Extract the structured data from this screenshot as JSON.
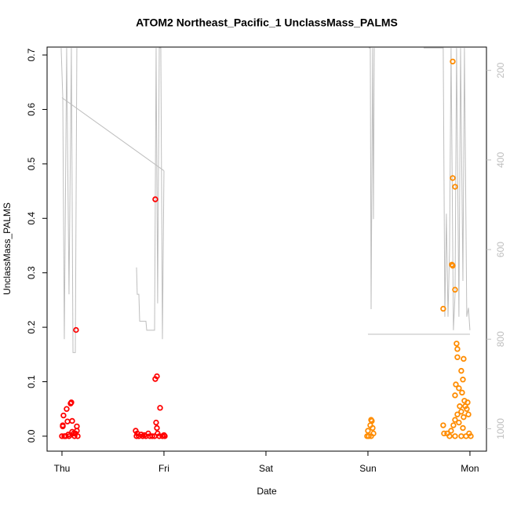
{
  "chart_data": {
    "type": "scatter",
    "title": "ATOM2 Northeast_Pacific_1 UnclassMass_PALMS",
    "x_label": "Date",
    "y_label": "UnclassMass_PALMS",
    "xlim": [
      -0.146,
      4.162
    ],
    "xticks": [
      {
        "value": 0,
        "label": "Thu"
      },
      {
        "value": 1,
        "label": "Fri"
      },
      {
        "value": 2,
        "label": "Sat"
      },
      {
        "value": 3,
        "label": "Sun"
      },
      {
        "value": 4,
        "label": "Mon"
      }
    ],
    "ylim": [
      -0.0275,
      0.7145
    ],
    "yticks": [
      {
        "value": 0,
        "label": "0.0"
      },
      0.1,
      0.2,
      0.3,
      0.4,
      0.5,
      0.6,
      0.7
    ],
    "y2lim": [
      1050,
      148
    ],
    "y2ticks": [
      200,
      400,
      600,
      800,
      1000
    ],
    "y2_color": "#bebebe",
    "series": [
      {
        "color": "#ff0000",
        "x": [
          0,
          0.008,
          0.015,
          0.008,
          0.023,
          0.038,
          0.046,
          0.054,
          0.069,
          0.085,
          0.092,
          0.1,
          0.115,
          0.131,
          0.138,
          0.146,
          0.146,
          0.154,
          0.031,
          0.062,
          0.123,
          0.1,
          0.723,
          0.731,
          0.738,
          0.754,
          0.777,
          0.792,
          0.808,
          0.823,
          0.846,
          0.862,
          0.885,
          0.908,
          0.915,
          0.915,
          0.931,
          0.962,
          0.923,
          0.931,
          0.938,
          0.954,
          0.985,
          1.0,
          1.008
        ],
        "values": [
          0,
          0.02,
          0.038,
          0.018,
          0,
          0,
          0.05,
          0.027,
          0,
          0.06,
          0.062,
          0.028,
          0.005,
          0.005,
          0.195,
          0.018,
          0.01,
          0,
          0,
          0.003,
          0,
          0.008,
          0.01,
          0,
          0.005,
          0,
          0.003,
          0,
          0.002,
          0,
          0.005,
          0,
          0,
          0,
          0.435,
          0.105,
          0.11,
          0.052,
          0.025,
          0.015,
          0.005,
          0,
          0,
          0.002,
          0
        ]
      },
      {
        "color": "#ff8c00",
        "x": [
          2.992,
          3.0,
          3.008,
          3.023,
          3.031,
          3.038,
          3.046,
          3.054,
          3.031,
          3.738,
          3.738,
          3.831,
          3.831,
          3.854,
          3.823,
          3.831,
          3.854,
          3.869,
          3.877,
          3.877,
          3.915,
          3.938,
          3.931,
          3.862,
          3.892,
          3.854,
          3.923,
          3.946,
          3.977,
          3.954,
          3.9,
          3.969,
          3.985,
          3.877,
          3.915,
          3.854,
          3.938,
          3.892,
          3.838,
          3.815,
          3.931,
          3.777,
          3.992,
          3.746,
          4.008,
          3.854,
          3.8,
          3.915,
          3.962
        ],
        "values": [
          0,
          0.01,
          0,
          0.02,
          0.03,
          0.028,
          0.015,
          0.005,
          0,
          0.234,
          0.02,
          0.688,
          0.474,
          0.458,
          0.315,
          0.313,
          0.269,
          0.17,
          0.16,
          0.145,
          0.12,
          0.142,
          0.104,
          0.095,
          0.088,
          0.075,
          0.08,
          0.065,
          0.062,
          0.055,
          0.055,
          0.05,
          0.04,
          0.04,
          0.045,
          0.03,
          0.035,
          0.025,
          0.02,
          0.01,
          0.015,
          0.005,
          0.005,
          0.005,
          0,
          0,
          0,
          0,
          0
        ]
      },
      {
        "color": "#bebebe",
        "axis": "y2",
        "x": [
          -0.008,
          0.008,
          0.023,
          0.046,
          0.069,
          0.092,
          0.108,
          0.131,
          0.146,
          null,
          0,
          1.0,
          null,
          0.731,
          0.738,
          0.754,
          0.762,
          0.823,
          0.831,
          0.908,
          0.923,
          0.938,
          0.954,
          0.969,
          0.985,
          1.0,
          null,
          3.008,
          3.023,
          3.031,
          3.046,
          3.054,
          3.062,
          null,
          3.0,
          4.0,
          null,
          3.546,
          3.738,
          3.754,
          3.769,
          3.785,
          3.8,
          3.815,
          3.838,
          3.854,
          3.869,
          3.892,
          3.908,
          3.931,
          3.946,
          3.969,
          3.985,
          4.0
        ],
        "values": [
          150,
          261,
          800,
          150,
          700,
          150,
          830,
          830,
          150,
          null,
          261,
          424,
          null,
          640,
          700,
          700,
          760,
          760,
          780,
          780,
          150,
          720,
          150,
          150,
          800,
          424,
          null,
          150,
          150,
          733,
          150,
          532,
          150,
          null,
          789,
          789,
          null,
          150,
          150,
          750,
          520,
          750,
          600,
          150,
          780,
          700,
          150,
          750,
          150,
          670,
          150,
          750,
          730,
          780
        ]
      }
    ]
  }
}
